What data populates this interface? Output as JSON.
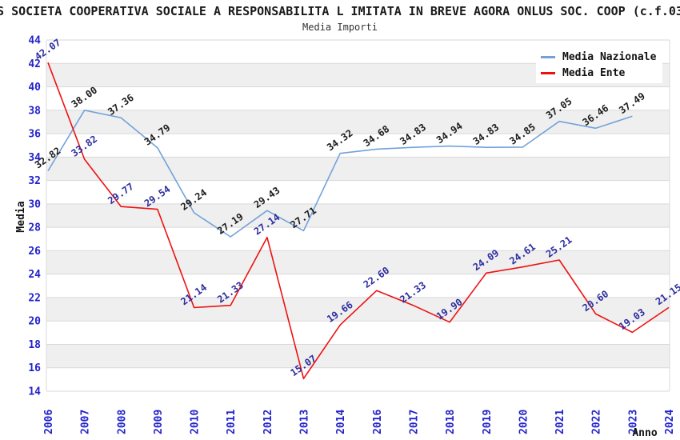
{
  "title": "S SOCIETA COOPERATIVA SOCIALE A RESPONSABILITA L IMITATA IN BREVE AGORA ONLUS SOC. COOP (c.f.03",
  "subtitle": "Media Importi",
  "chart_data": {
    "type": "line",
    "x": [
      "2006",
      "2007",
      "2008",
      "2009",
      "2010",
      "2011",
      "2012",
      "2013",
      "2014",
      "2016",
      "2017",
      "2018",
      "2019",
      "2020",
      "2021",
      "2022",
      "2023",
      "2024"
    ],
    "series": [
      {
        "name": "Media Nazionale",
        "color": "#73a2d9",
        "label_color": "#1c1c1c",
        "values": [
          32.82,
          38.0,
          37.36,
          34.79,
          29.24,
          27.19,
          29.43,
          27.71,
          34.32,
          34.68,
          34.83,
          34.94,
          34.83,
          34.85,
          37.05,
          36.46,
          37.49,
          null
        ]
      },
      {
        "name": "Media Ente",
        "color": "#ee1111",
        "label_color": "#2d2d9f",
        "values": [
          42.07,
          33.82,
          29.77,
          29.54,
          21.14,
          21.33,
          27.14,
          15.07,
          19.66,
          22.6,
          21.33,
          19.9,
          24.09,
          24.61,
          25.21,
          20.6,
          19.03,
          21.15
        ]
      }
    ],
    "xlabel": "Anno",
    "ylabel": "Media",
    "ylim": [
      14,
      44
    ],
    "ytick_step": 2,
    "grid": true,
    "legend_position": "top-right",
    "colors": {
      "tick_label": "#2222cc",
      "band": "#efefef",
      "gridline": "#d9d9d9"
    }
  }
}
